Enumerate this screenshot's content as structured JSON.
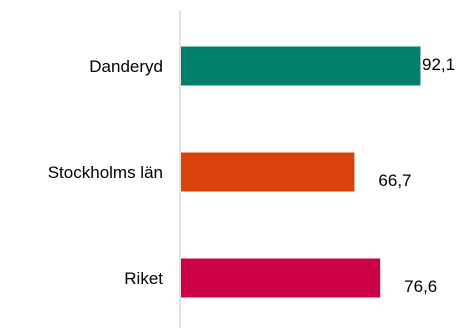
{
  "chart_data": {
    "type": "bar",
    "orientation": "horizontal",
    "categories": [
      "Danderyd",
      "Stockholms län",
      "Riket"
    ],
    "values": [
      92.1,
      66.7,
      76.6
    ],
    "value_labels": [
      "92,1",
      "66,7",
      "76,6"
    ],
    "colors": [
      "#00806a",
      "#d9420b",
      "#cc0044"
    ],
    "xlim": [
      0,
      100
    ],
    "grid": false,
    "legend": "none",
    "axis_line_color": "#d9d9d9"
  }
}
